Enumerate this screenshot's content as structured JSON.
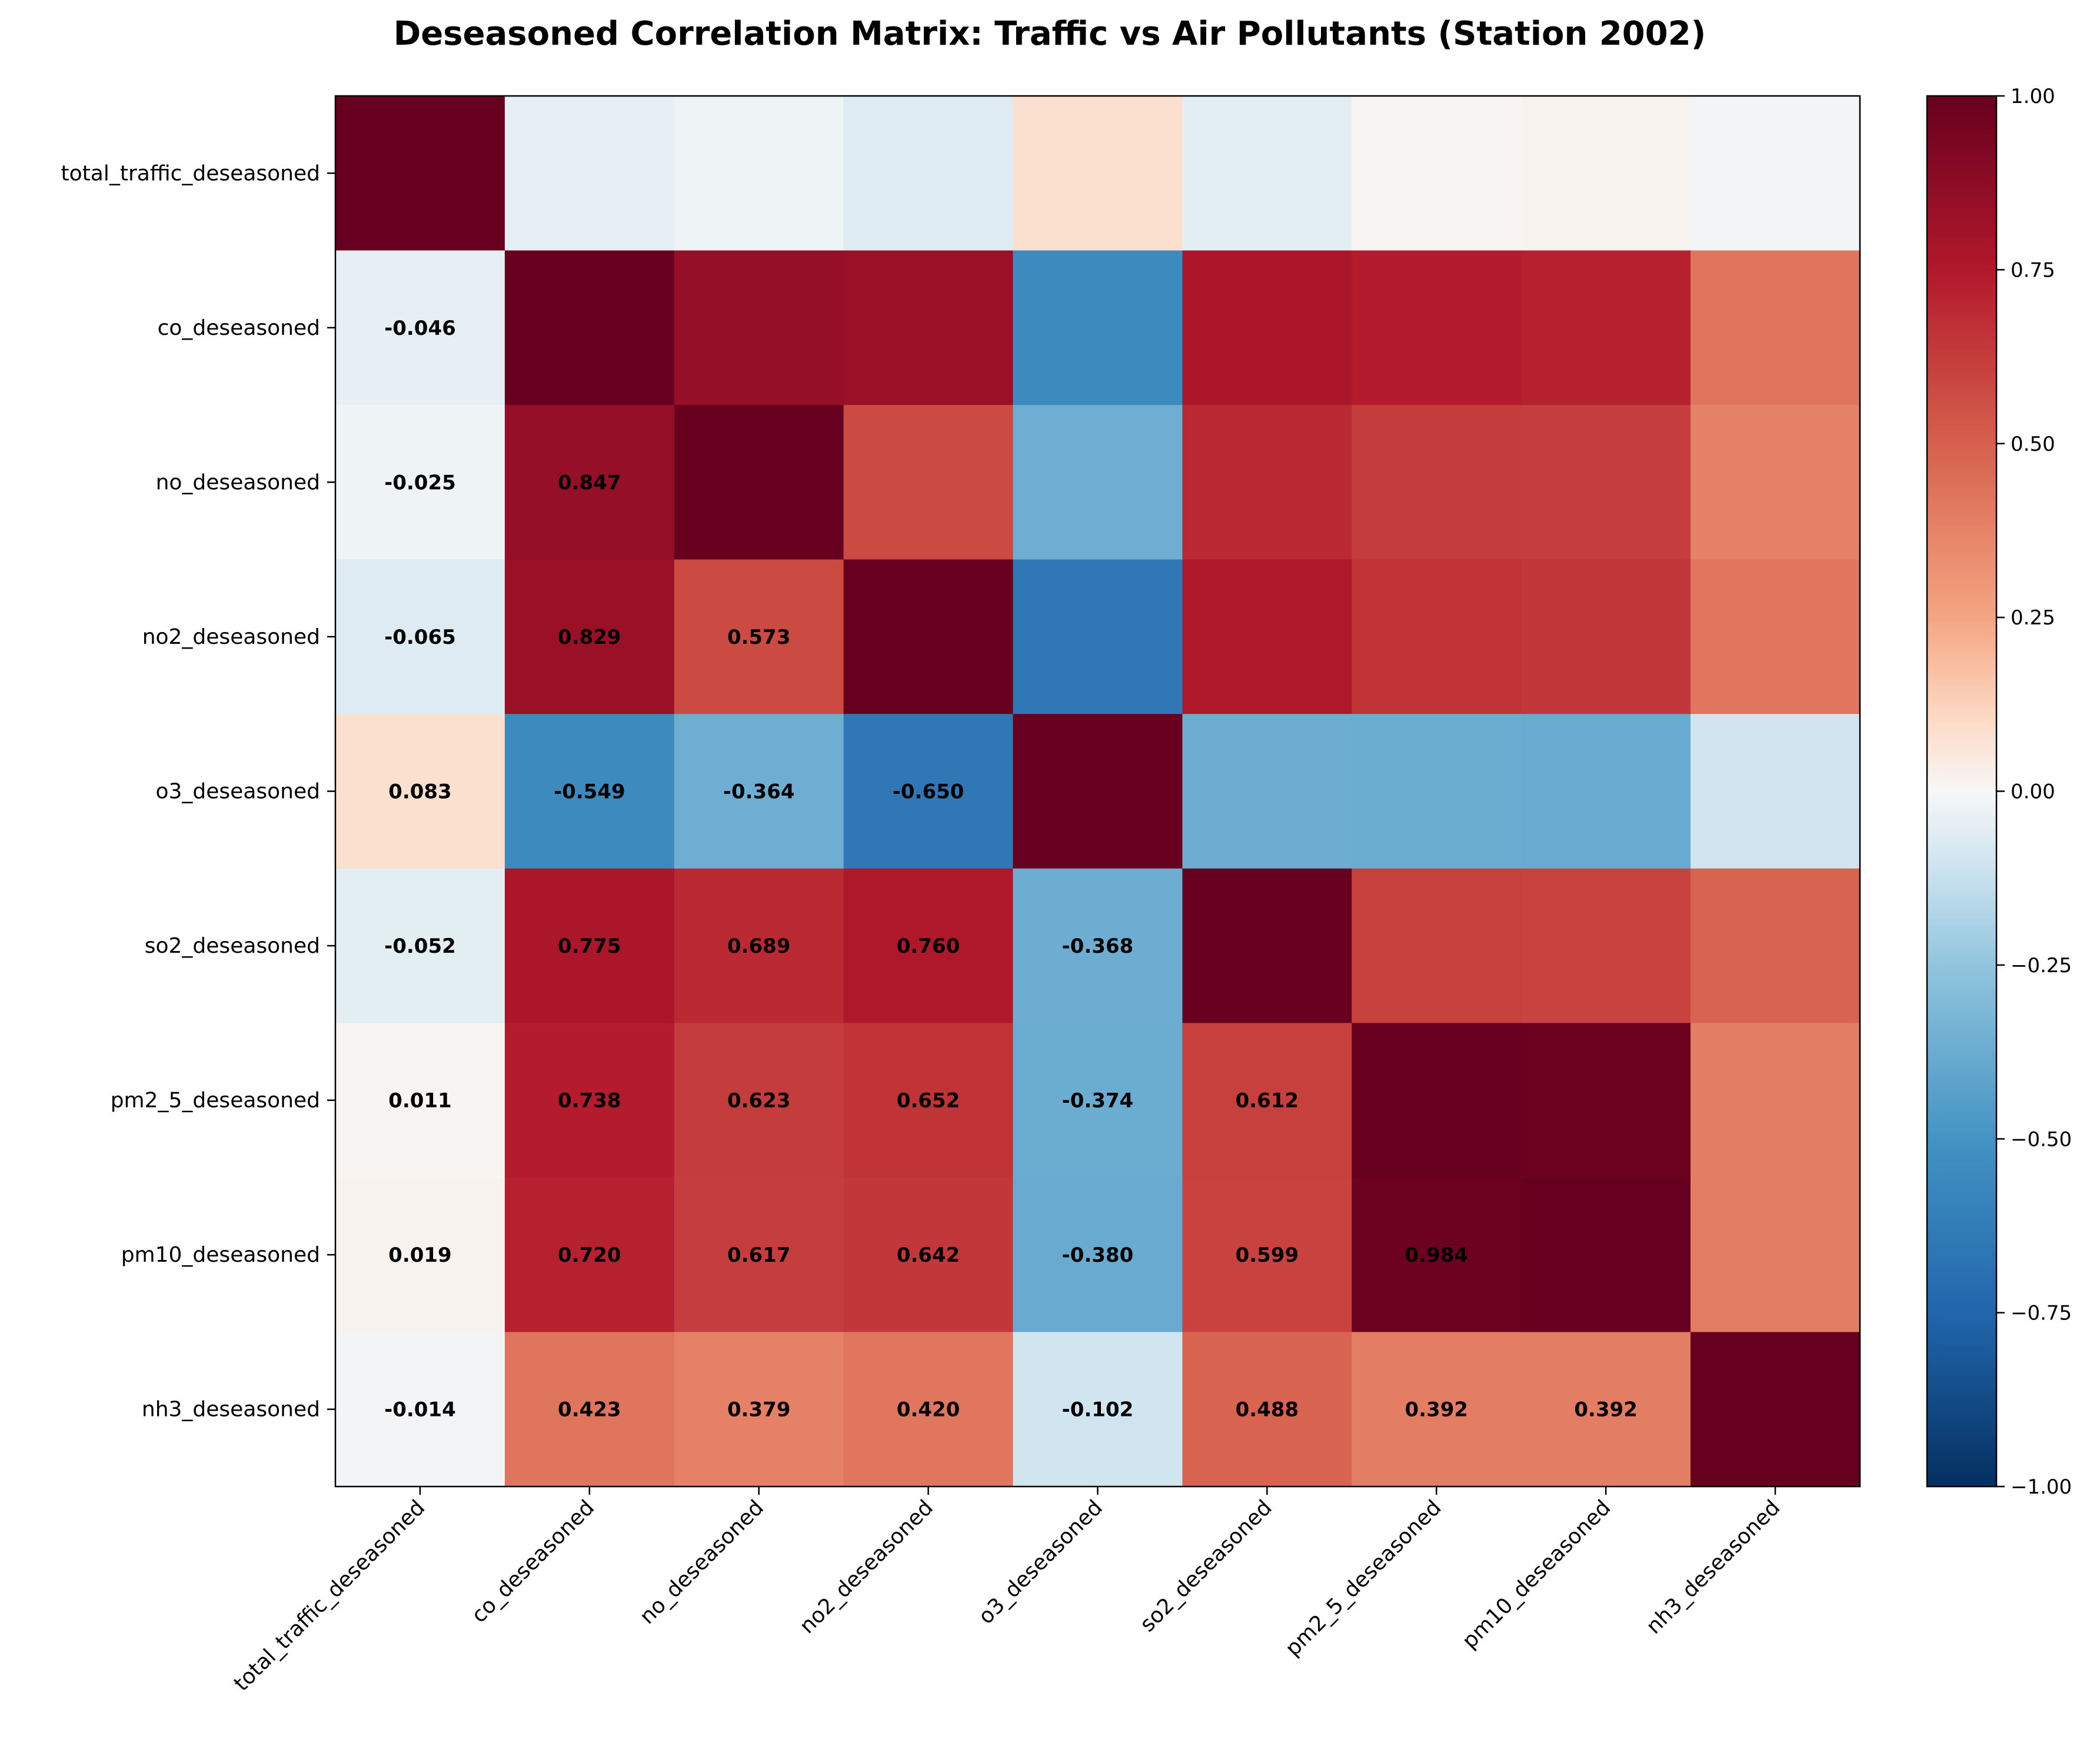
{
  "chart_data": {
    "type": "heatmap",
    "title": "Deseasoned Correlation Matrix: Traffic vs Air Pollutants (Station 2002)",
    "xlabel": "",
    "ylabel": "",
    "labels": [
      "total_traffic_deseasoned",
      "co_deseasoned",
      "no_deseasoned",
      "no2_deseasoned",
      "o3_deseasoned",
      "so2_deseasoned",
      "pm2_5_deseasoned",
      "pm10_deseasoned",
      "nh3_deseasoned"
    ],
    "matrix": [
      [
        1.0,
        -0.046,
        -0.025,
        -0.065,
        0.083,
        -0.052,
        0.011,
        0.019,
        -0.014
      ],
      [
        -0.046,
        1.0,
        0.847,
        0.829,
        -0.549,
        0.775,
        0.738,
        0.72,
        0.423
      ],
      [
        -0.025,
        0.847,
        1.0,
        0.573,
        -0.364,
        0.689,
        0.623,
        0.617,
        0.379
      ],
      [
        -0.065,
        0.829,
        0.573,
        1.0,
        -0.65,
        0.76,
        0.652,
        0.642,
        0.42
      ],
      [
        0.083,
        -0.549,
        -0.364,
        -0.65,
        1.0,
        -0.368,
        -0.374,
        -0.38,
        -0.102
      ],
      [
        -0.052,
        0.775,
        0.689,
        0.76,
        -0.368,
        1.0,
        0.612,
        0.599,
        0.488
      ],
      [
        0.011,
        0.738,
        0.623,
        0.652,
        -0.374,
        0.612,
        1.0,
        0.984,
        0.392
      ],
      [
        0.019,
        0.72,
        0.617,
        0.642,
        -0.38,
        0.599,
        0.984,
        1.0,
        0.392
      ],
      [
        -0.014,
        0.423,
        0.379,
        0.42,
        -0.102,
        0.488,
        0.392,
        0.392,
        1.0
      ]
    ],
    "annotations": "lower triangle only, 3 decimals",
    "colormap": "RdBu_r",
    "vmin": -1.0,
    "vmax": 1.0,
    "colorbar_ticks": [
      "1.00",
      "0.75",
      "0.50",
      "0.25",
      "0.00",
      "−0.25",
      "−0.50",
      "−0.75",
      "−1.00"
    ],
    "colorbar_tick_values": [
      1.0,
      0.75,
      0.5,
      0.25,
      0.0,
      -0.25,
      -0.5,
      -0.75,
      -1.0
    ],
    "grid": false,
    "legend": "colorbar right"
  }
}
